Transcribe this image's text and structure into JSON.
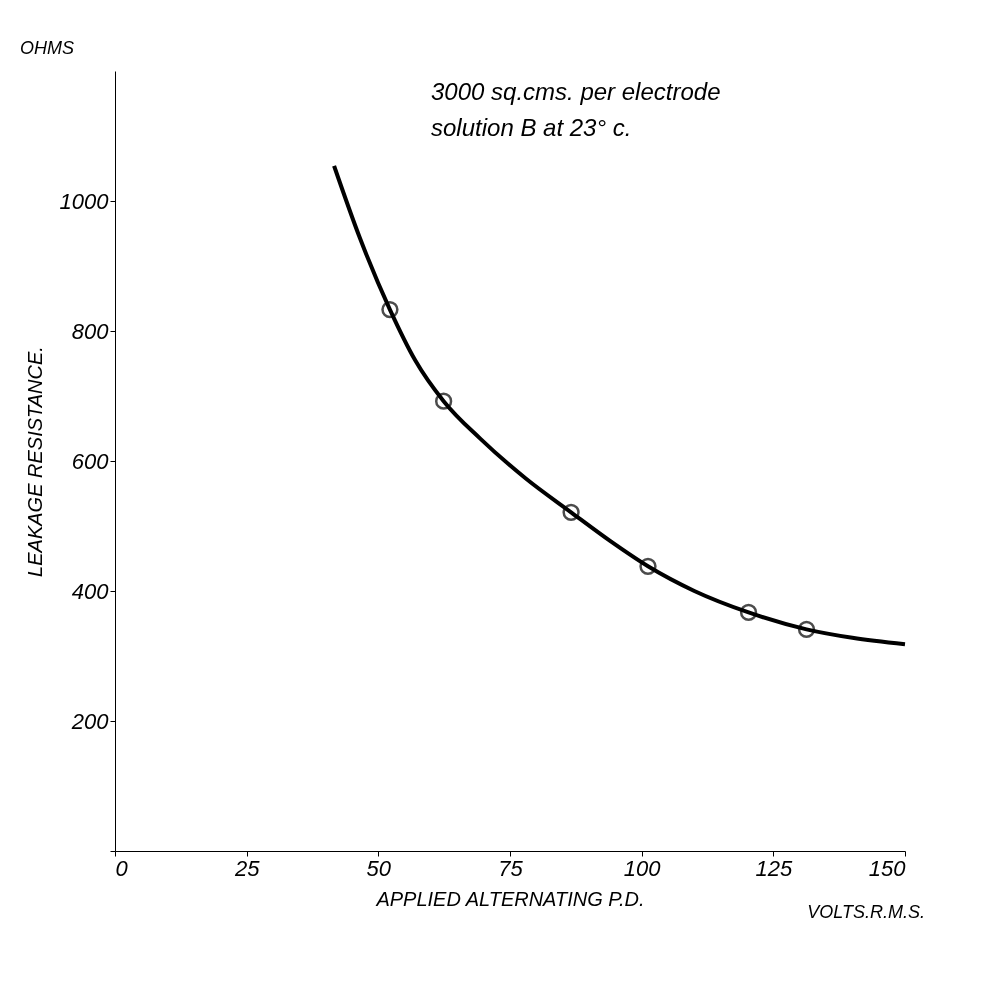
{
  "chart_data": {
    "type": "scatter",
    "xlabel": "APPLIED ALTERNATING P.D.",
    "ylabel": "LEAKAGE RESISTANCE.",
    "annotations": [
      "3000 sq.cms. per electrode",
      "solution B at 23° c.",
      "OHMS",
      "VOLTS.R.M.S."
    ],
    "xlim": [
      0,
      150
    ],
    "xticks": [
      0,
      25,
      50,
      75,
      100,
      125,
      150
    ],
    "ylim": [
      0,
      1200
    ],
    "yticks": [
      {
        "value": 0,
        "label": null
      },
      200,
      400,
      600,
      800,
      1000
    ],
    "grid": false,
    "series": [
      {
        "type": "line",
        "color": "#000000",
        "line_style": "solid",
        "x": [
          41.6,
          46.5,
          52.2,
          57,
          62.4,
          69.4,
          78,
          86.6,
          94,
          101.2,
          110,
          120.3,
          131.3,
          140,
          150
        ],
        "values": [
          1054,
          943,
          833,
          755,
          692,
          634,
          573,
          521,
          477,
          438,
          400,
          367,
          341,
          328,
          318
        ]
      },
      {
        "type": "scatter",
        "color": "#000000",
        "marker": "circle",
        "x": [
          52.2,
          62.4,
          86.6,
          101.2,
          120.3,
          131.3
        ],
        "values": [
          833,
          692,
          521,
          438,
          367,
          341
        ]
      }
    ]
  }
}
